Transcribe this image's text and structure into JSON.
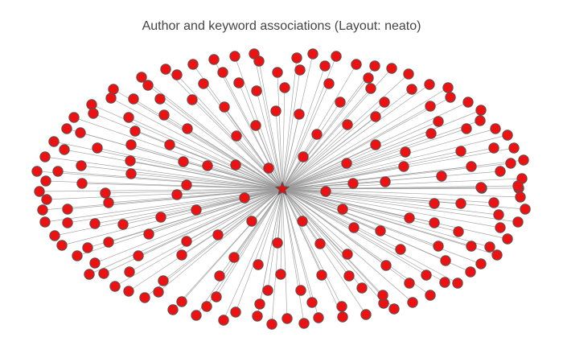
{
  "diagram": {
    "title": "Author and keyword associations (Layout: neato)",
    "layout": "neato",
    "topology": "star",
    "hub": {
      "shape": "star",
      "color": "#dd1111"
    },
    "leaf_node_color": "#ee1111",
    "node_outline_color": "#555555",
    "edge_color": "#999999",
    "leaf_node_count": 196
  }
}
